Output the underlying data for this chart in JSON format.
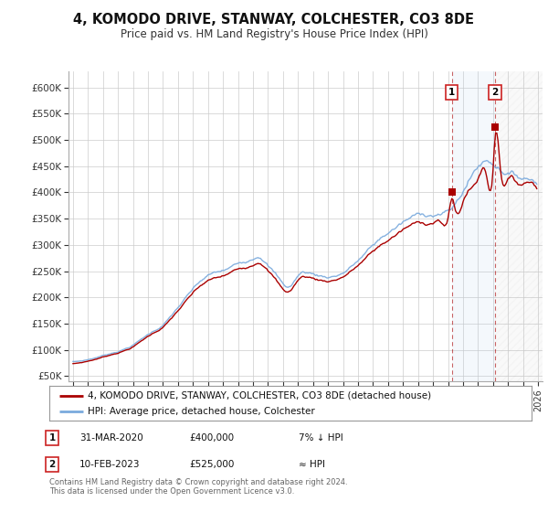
{
  "title": "4, KOMODO DRIVE, STANWAY, COLCHESTER, CO3 8DE",
  "subtitle": "Price paid vs. HM Land Registry's House Price Index (HPI)",
  "title_fontsize": 10.5,
  "subtitle_fontsize": 8.5,
  "bg_color": "#ffffff",
  "grid_color": "#cccccc",
  "hpi_color": "#7aaadd",
  "price_color": "#aa0000",
  "annotation1": {
    "label": "1",
    "date": "31-MAR-2020",
    "price": "£400,000",
    "note": "7% ↓ HPI",
    "x_year": 2020.25,
    "y_val": 400000
  },
  "annotation2": {
    "label": "2",
    "date": "10-FEB-2023",
    "price": "£525,000",
    "note": "≈ HPI",
    "x_year": 2023.12,
    "y_val": 525000
  },
  "legend_line1": "4, KOMODO DRIVE, STANWAY, COLCHESTER, CO3 8DE (detached house)",
  "legend_line2": "HPI: Average price, detached house, Colchester",
  "footer1": "Contains HM Land Registry data © Crown copyright and database right 2024.",
  "footer2": "This data is licensed under the Open Government Licence v3.0.",
  "xlim_left": 1994.7,
  "xlim_right": 2026.3,
  "ylim_bottom": 50000,
  "ylim_top": 610000,
  "yticks": [
    50000,
    100000,
    150000,
    200000,
    250000,
    300000,
    350000,
    400000,
    450000,
    500000,
    550000,
    600000
  ],
  "xtick_years": [
    1995,
    1996,
    1997,
    1998,
    1999,
    2000,
    2001,
    2002,
    2003,
    2004,
    2005,
    2006,
    2007,
    2008,
    2009,
    2010,
    2011,
    2012,
    2013,
    2014,
    2015,
    2016,
    2017,
    2018,
    2019,
    2020,
    2021,
    2022,
    2023,
    2024,
    2025,
    2026
  ]
}
